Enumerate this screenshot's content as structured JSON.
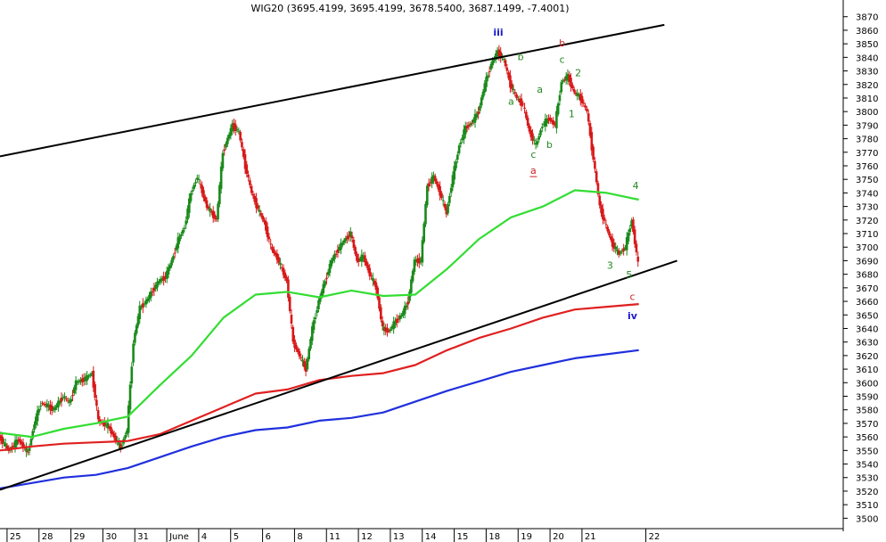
{
  "chart_data": {
    "type": "candlestick",
    "title": "WIG20 (3695.4199, 3695.4199, 3678.5400, 3687.1499, -7.4001)",
    "ylim": [
      3493,
      3881
    ],
    "y_ticks": [
      3500,
      3510,
      3520,
      3530,
      3540,
      3550,
      3560,
      3570,
      3580,
      3590,
      3600,
      3610,
      3620,
      3630,
      3640,
      3650,
      3660,
      3670,
      3680,
      3690,
      3700,
      3710,
      3720,
      3730,
      3740,
      3750,
      3760,
      3770,
      3780,
      3790,
      3800,
      3810,
      3820,
      3830,
      3840,
      3850,
      3860,
      3870
    ],
    "x_range": [
      0,
      24
    ],
    "x_ticks": [
      {
        "label": "25",
        "x": 0.5
      },
      {
        "label": "28",
        "x": 1.5
      },
      {
        "label": "29",
        "x": 2.5
      },
      {
        "label": "30",
        "x": 3.5
      },
      {
        "label": "31",
        "x": 4.5
      },
      {
        "label": "June",
        "x": 5.5
      },
      {
        "label": "4",
        "x": 6.5
      },
      {
        "label": "5",
        "x": 7.5
      },
      {
        "label": "6",
        "x": 8.5
      },
      {
        "label": "8",
        "x": 9.5
      },
      {
        "label": "11",
        "x": 10.5
      },
      {
        "label": "12",
        "x": 11.5
      },
      {
        "label": "13",
        "x": 12.5
      },
      {
        "label": "14",
        "x": 13.5
      },
      {
        "label": "15",
        "x": 14.5
      },
      {
        "label": "18",
        "x": 15.5
      },
      {
        "label": "19",
        "x": 16.5
      },
      {
        "label": "20",
        "x": 17.5
      },
      {
        "label": "21",
        "x": 18.5
      },
      {
        "label": "22",
        "x": 20.5
      }
    ],
    "close_series": [
      [
        0.0,
        3560
      ],
      [
        0.3,
        3550
      ],
      [
        0.6,
        3558
      ],
      [
        0.9,
        3548
      ],
      [
        1.1,
        3570
      ],
      [
        1.3,
        3585
      ],
      [
        1.5,
        3583
      ],
      [
        1.7,
        3580
      ],
      [
        2.0,
        3590
      ],
      [
        2.2,
        3585
      ],
      [
        2.4,
        3600
      ],
      [
        2.7,
        3603
      ],
      [
        2.9,
        3607
      ],
      [
        3.1,
        3572
      ],
      [
        3.4,
        3568
      ],
      [
        3.6,
        3560
      ],
      [
        3.8,
        3552
      ],
      [
        4.0,
        3565
      ],
      [
        4.2,
        3630
      ],
      [
        4.4,
        3655
      ],
      [
        4.6,
        3660
      ],
      [
        4.8,
        3668
      ],
      [
        5.0,
        3675
      ],
      [
        5.2,
        3678
      ],
      [
        5.4,
        3690
      ],
      [
        5.6,
        3705
      ],
      [
        5.8,
        3715
      ],
      [
        6.0,
        3740
      ],
      [
        6.2,
        3752
      ],
      [
        6.5,
        3730
      ],
      [
        6.8,
        3720
      ],
      [
        7.0,
        3770
      ],
      [
        7.3,
        3790
      ],
      [
        7.5,
        3785
      ],
      [
        7.7,
        3760
      ],
      [
        7.9,
        3740
      ],
      [
        8.1,
        3728
      ],
      [
        8.3,
        3718
      ],
      [
        8.5,
        3700
      ],
      [
        8.7,
        3692
      ],
      [
        9.0,
        3675
      ],
      [
        9.2,
        3630
      ],
      [
        9.4,
        3620
      ],
      [
        9.6,
        3610
      ],
      [
        9.8,
        3640
      ],
      [
        10.0,
        3660
      ],
      [
        10.2,
        3675
      ],
      [
        10.4,
        3690
      ],
      [
        10.6,
        3698
      ],
      [
        10.8,
        3705
      ],
      [
        11.0,
        3710
      ],
      [
        11.2,
        3690
      ],
      [
        11.4,
        3693
      ],
      [
        11.6,
        3680
      ],
      [
        11.8,
        3670
      ],
      [
        12.0,
        3640
      ],
      [
        12.2,
        3638
      ],
      [
        12.4,
        3645
      ],
      [
        12.6,
        3650
      ],
      [
        12.8,
        3660
      ],
      [
        13.0,
        3690
      ],
      [
        13.2,
        3690
      ],
      [
        13.4,
        3745
      ],
      [
        13.6,
        3752
      ],
      [
        13.8,
        3740
      ],
      [
        14.0,
        3725
      ],
      [
        14.2,
        3752
      ],
      [
        14.4,
        3775
      ],
      [
        14.6,
        3788
      ],
      [
        14.8,
        3792
      ],
      [
        15.0,
        3800
      ],
      [
        15.2,
        3820
      ],
      [
        15.4,
        3835
      ],
      [
        15.6,
        3844
      ],
      [
        15.8,
        3838
      ],
      [
        16.0,
        3820
      ],
      [
        16.2,
        3810
      ],
      [
        16.4,
        3805
      ],
      [
        16.6,
        3785
      ],
      [
        16.8,
        3775
      ],
      [
        17.0,
        3790
      ],
      [
        17.2,
        3795
      ],
      [
        17.4,
        3790
      ],
      [
        17.6,
        3822
      ],
      [
        17.8,
        3826
      ],
      [
        18.0,
        3814
      ],
      [
        18.2,
        3810
      ],
      [
        18.4,
        3800
      ],
      [
        18.6,
        3765
      ],
      [
        18.8,
        3730
      ],
      [
        19.0,
        3715
      ],
      [
        19.2,
        3702
      ],
      [
        19.4,
        3695
      ],
      [
        19.6,
        3700
      ],
      [
        19.8,
        3720
      ],
      [
        20.0,
        3687
      ]
    ],
    "series": [
      {
        "color": "#33dd33",
        "points": [
          [
            0,
            3563
          ],
          [
            1,
            3560
          ],
          [
            2,
            3566
          ],
          [
            3,
            3570
          ],
          [
            4,
            3575
          ],
          [
            5,
            3598
          ],
          [
            6,
            3620
          ],
          [
            7,
            3648
          ],
          [
            8,
            3665
          ],
          [
            9,
            3667
          ],
          [
            10,
            3663
          ],
          [
            11,
            3668
          ],
          [
            12,
            3664
          ],
          [
            13,
            3665
          ],
          [
            14,
            3684
          ],
          [
            15,
            3706
          ],
          [
            16,
            3722
          ],
          [
            17,
            3730
          ],
          [
            18,
            3742
          ],
          [
            19,
            3740
          ],
          [
            20,
            3735
          ]
        ]
      },
      {
        "color": "#e02020",
        "points": [
          [
            0,
            3550
          ],
          [
            1,
            3553
          ],
          [
            2,
            3555
          ],
          [
            3,
            3556
          ],
          [
            4,
            3557
          ],
          [
            5,
            3562
          ],
          [
            6,
            3572
          ],
          [
            7,
            3582
          ],
          [
            8,
            3592
          ],
          [
            9,
            3595
          ],
          [
            10,
            3602
          ],
          [
            11,
            3605
          ],
          [
            12,
            3607
          ],
          [
            13,
            3613
          ],
          [
            14,
            3624
          ],
          [
            15,
            3633
          ],
          [
            16,
            3640
          ],
          [
            17,
            3648
          ],
          [
            18,
            3654
          ],
          [
            19,
            3656
          ],
          [
            20,
            3658
          ]
        ]
      },
      {
        "color": "#2030dd",
        "points": [
          [
            0,
            3522
          ],
          [
            1,
            3526
          ],
          [
            2,
            3530
          ],
          [
            3,
            3532
          ],
          [
            4,
            3537
          ],
          [
            5,
            3545
          ],
          [
            6,
            3553
          ],
          [
            7,
            3560
          ],
          [
            8,
            3565
          ],
          [
            9,
            3567
          ],
          [
            10,
            3572
          ],
          [
            11,
            3574
          ],
          [
            12,
            3578
          ],
          [
            13,
            3586
          ],
          [
            14,
            3594
          ],
          [
            15,
            3601
          ],
          [
            16,
            3608
          ],
          [
            17,
            3613
          ],
          [
            18,
            3618
          ],
          [
            19,
            3621
          ],
          [
            20,
            3624
          ]
        ]
      }
    ],
    "trend_lines": [
      {
        "color": "#000000",
        "from": [
          0,
          3767
        ],
        "to": [
          20.8,
          3864
        ]
      },
      {
        "color": "#000000",
        "from": [
          0,
          3521
        ],
        "to": [
          21.2,
          3690
        ]
      }
    ],
    "wave_labels": [
      {
        "text": "iii",
        "x": 15.6,
        "y": 3856,
        "color": "#1a1acc"
      },
      {
        "text": "b",
        "x": 16.3,
        "y": 3838,
        "color": "#228822"
      },
      {
        "text": "a",
        "x": 16.0,
        "y": 3805,
        "color": "#228822"
      },
      {
        "text": "a",
        "x": 16.9,
        "y": 3814,
        "color": "#228822"
      },
      {
        "text": "c",
        "x": 16.7,
        "y": 3766,
        "color": "#228822"
      },
      {
        "text": "a",
        "x": 16.7,
        "y": 3754,
        "color": "#cc2222"
      },
      {
        "text": "b",
        "x": 17.2,
        "y": 3773,
        "color": "#228822"
      },
      {
        "text": "b",
        "x": 17.6,
        "y": 3848,
        "color": "#cc2222"
      },
      {
        "text": "c",
        "x": 17.6,
        "y": 3836,
        "color": "#228822"
      },
      {
        "text": "2",
        "x": 18.1,
        "y": 3826,
        "color": "#228822"
      },
      {
        "text": "1",
        "x": 17.9,
        "y": 3796,
        "color": "#228822"
      },
      {
        "text": "4",
        "x": 19.9,
        "y": 3743,
        "color": "#228822"
      },
      {
        "text": "3",
        "x": 19.1,
        "y": 3684,
        "color": "#228822"
      },
      {
        "text": "5",
        "x": 19.7,
        "y": 3677,
        "color": "#228822"
      },
      {
        "text": "c",
        "x": 19.8,
        "y": 3661,
        "color": "#cc2222"
      },
      {
        "text": "iv",
        "x": 19.8,
        "y": 3647,
        "color": "#1a1acc"
      }
    ]
  }
}
